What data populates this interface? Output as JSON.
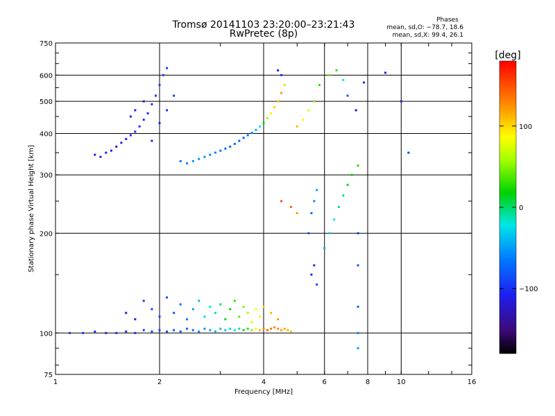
{
  "chart_data": {
    "type": "scatter",
    "title": "Tromsø 20141103 23:20:00–23:21:43",
    "subtitle": "RwPretec (8p)",
    "xlabel": "Frequency [MHz]",
    "ylabel": "Stationary phase Virtual Height [km]",
    "x_scale": "log",
    "y_scale": "log",
    "xlim": [
      1,
      16
    ],
    "ylim": [
      75,
      750
    ],
    "x_ticks": [
      "1",
      "2",
      "4",
      "6",
      "8",
      "10",
      "16"
    ],
    "x_tick_values": [
      1,
      2,
      4,
      6,
      8,
      10,
      16
    ],
    "y_ticks": [
      "750",
      "600",
      "500",
      "400",
      "300",
      "200",
      "100",
      "75"
    ],
    "y_tick_values": [
      750,
      600,
      500,
      400,
      300,
      200,
      100,
      75
    ],
    "grid": true,
    "phase_stats": {
      "title": "Phases",
      "line_o": "mean, sd,O: −78.7, 18.6",
      "line_x": "mean, sd,X:  99.4, 26.1"
    },
    "colorbar": {
      "label": "[deg]",
      "ticks": [
        "100",
        "0",
        "−100"
      ],
      "tick_values": [
        100,
        0,
        -100
      ],
      "range": [
        -180,
        180
      ],
      "colormap": "rainbow"
    },
    "series": [
      {
        "description": "F-trace band",
        "points": [
          [
            1.3,
            345,
            -110
          ],
          [
            1.35,
            340,
            -112
          ],
          [
            1.4,
            350,
            -108
          ],
          [
            1.45,
            355,
            -105
          ],
          [
            1.5,
            365,
            -110
          ],
          [
            1.55,
            375,
            -108
          ],
          [
            1.6,
            385,
            -106
          ],
          [
            1.65,
            395,
            -104
          ],
          [
            1.7,
            405,
            -100
          ],
          [
            1.75,
            420,
            -102
          ],
          [
            1.8,
            440,
            -105
          ],
          [
            1.85,
            460,
            -100
          ],
          [
            1.9,
            490,
            -98
          ],
          [
            1.95,
            520,
            -95
          ],
          [
            2.0,
            560,
            -92
          ],
          [
            2.05,
            600,
            -90
          ],
          [
            2.1,
            630,
            -88
          ],
          [
            1.65,
            450,
            -110
          ],
          [
            1.7,
            470,
            -108
          ],
          [
            1.8,
            500,
            -106
          ],
          [
            1.9,
            380,
            -104
          ],
          [
            2.0,
            430,
            -102
          ],
          [
            2.1,
            470,
            -100
          ],
          [
            2.2,
            520,
            -96
          ]
        ]
      },
      {
        "description": "F-trace upper",
        "points": [
          [
            2.3,
            330,
            -70
          ],
          [
            2.4,
            325,
            -60
          ],
          [
            2.5,
            330,
            -55
          ],
          [
            2.6,
            335,
            -50
          ],
          [
            2.7,
            340,
            -55
          ],
          [
            2.8,
            345,
            -60
          ],
          [
            2.9,
            350,
            -62
          ],
          [
            3.0,
            355,
            -65
          ],
          [
            3.1,
            360,
            -70
          ],
          [
            3.2,
            365,
            -72
          ],
          [
            3.3,
            372,
            -75
          ],
          [
            3.4,
            380,
            -78
          ],
          [
            3.5,
            388,
            -80
          ],
          [
            3.6,
            395,
            -70
          ],
          [
            3.7,
            402,
            -60
          ],
          [
            3.8,
            410,
            -40
          ],
          [
            3.9,
            420,
            -20
          ],
          [
            4.0,
            430,
            20
          ],
          [
            4.1,
            445,
            60
          ],
          [
            4.2,
            460,
            80
          ],
          [
            4.3,
            480,
            100
          ],
          [
            4.4,
            500,
            110
          ],
          [
            4.5,
            530,
            120
          ],
          [
            4.6,
            560,
            100
          ],
          [
            4.4,
            620,
            -110
          ],
          [
            4.5,
            600,
            -100
          ],
          [
            5.0,
            420,
            110
          ],
          [
            5.2,
            440,
            90
          ],
          [
            5.4,
            470,
            70
          ],
          [
            5.6,
            500,
            50
          ],
          [
            5.8,
            560,
            30
          ],
          [
            6.2,
            600,
            40
          ],
          [
            6.5,
            620,
            30
          ],
          [
            6.8,
            580,
            -20
          ],
          [
            7.0,
            520,
            -80
          ],
          [
            7.4,
            470,
            -120
          ]
        ]
      },
      {
        "description": "E-trace",
        "points": [
          [
            1.1,
            100,
            -100
          ],
          [
            1.2,
            100,
            -102
          ],
          [
            1.3,
            101,
            -104
          ],
          [
            1.4,
            100,
            -106
          ],
          [
            1.5,
            100,
            -104
          ],
          [
            1.6,
            101,
            -102
          ],
          [
            1.7,
            100,
            -100
          ],
          [
            1.8,
            102,
            -98
          ],
          [
            1.9,
            101,
            -95
          ],
          [
            2.0,
            102,
            -92
          ],
          [
            2.1,
            101,
            -90
          ],
          [
            2.2,
            102,
            -85
          ],
          [
            2.3,
            101,
            -80
          ],
          [
            2.4,
            103,
            -75
          ],
          [
            2.5,
            102,
            -70
          ],
          [
            2.6,
            101,
            -60
          ],
          [
            2.7,
            103,
            -55
          ],
          [
            2.8,
            102,
            -50
          ],
          [
            2.9,
            101,
            -45
          ],
          [
            3.0,
            103,
            -40
          ],
          [
            3.1,
            102,
            -35
          ],
          [
            3.2,
            103,
            -30
          ],
          [
            3.3,
            102,
            -20
          ],
          [
            3.4,
            103,
            -10
          ],
          [
            3.5,
            102,
            10
          ],
          [
            3.6,
            103,
            30
          ],
          [
            3.7,
            102,
            50
          ],
          [
            3.8,
            103,
            80
          ],
          [
            3.9,
            102,
            110
          ],
          [
            4.0,
            103,
            130
          ],
          [
            4.1,
            102,
            140
          ],
          [
            4.2,
            103,
            135
          ],
          [
            4.3,
            104,
            130
          ],
          [
            4.4,
            103,
            125
          ],
          [
            4.5,
            102,
            120
          ],
          [
            4.6,
            103,
            115
          ],
          [
            4.7,
            102,
            110
          ],
          [
            4.8,
            101,
            105
          ]
        ]
      },
      {
        "description": "E-trace scatter",
        "points": [
          [
            1.6,
            115,
            -105
          ],
          [
            1.7,
            110,
            -100
          ],
          [
            1.8,
            125,
            -95
          ],
          [
            1.9,
            118,
            -90
          ],
          [
            2.0,
            112,
            -88
          ],
          [
            2.1,
            128,
            -85
          ],
          [
            2.2,
            115,
            -80
          ],
          [
            2.3,
            122,
            -70
          ],
          [
            2.4,
            110,
            -60
          ],
          [
            2.5,
            118,
            -50
          ],
          [
            2.6,
            125,
            -40
          ],
          [
            2.7,
            112,
            -30
          ],
          [
            2.8,
            120,
            -20
          ],
          [
            2.9,
            115,
            -10
          ],
          [
            3.0,
            122,
            0
          ],
          [
            3.1,
            110,
            10
          ],
          [
            3.2,
            118,
            20
          ],
          [
            3.3,
            125,
            30
          ],
          [
            3.4,
            112,
            40
          ],
          [
            3.5,
            120,
            50
          ],
          [
            3.6,
            115,
            60
          ],
          [
            3.7,
            108,
            70
          ],
          [
            3.8,
            118,
            80
          ],
          [
            3.9,
            112,
            90
          ],
          [
            4.0,
            120,
            100
          ],
          [
            4.2,
            115,
            110
          ],
          [
            4.4,
            110,
            120
          ]
        ]
      },
      {
        "description": "Sparse high-frequency echoes",
        "points": [
          [
            5.5,
            150,
            -110
          ],
          [
            5.6,
            160,
            -100
          ],
          [
            5.7,
            140,
            -90
          ],
          [
            5.4,
            200,
            -80
          ],
          [
            5.5,
            230,
            -70
          ],
          [
            5.6,
            250,
            -60
          ],
          [
            5.7,
            270,
            -50
          ],
          [
            6.0,
            180,
            -40
          ],
          [
            6.2,
            200,
            -30
          ],
          [
            6.4,
            220,
            -20
          ],
          [
            6.6,
            240,
            -10
          ],
          [
            6.8,
            260,
            0
          ],
          [
            7.0,
            280,
            10
          ],
          [
            7.2,
            300,
            20
          ],
          [
            7.5,
            320,
            30
          ],
          [
            7.5,
            200,
            -90
          ],
          [
            7.5,
            160,
            -80
          ],
          [
            7.5,
            120,
            -70
          ],
          [
            7.5,
            100,
            -60
          ],
          [
            7.5,
            90,
            -50
          ],
          [
            7.8,
            570,
            -100
          ],
          [
            9.0,
            610,
            -110
          ],
          [
            10.0,
            500,
            -120
          ],
          [
            10.5,
            350,
            -90
          ],
          [
            4.5,
            250,
            150
          ],
          [
            4.8,
            240,
            140
          ],
          [
            5.0,
            230,
            120
          ]
        ]
      }
    ]
  }
}
